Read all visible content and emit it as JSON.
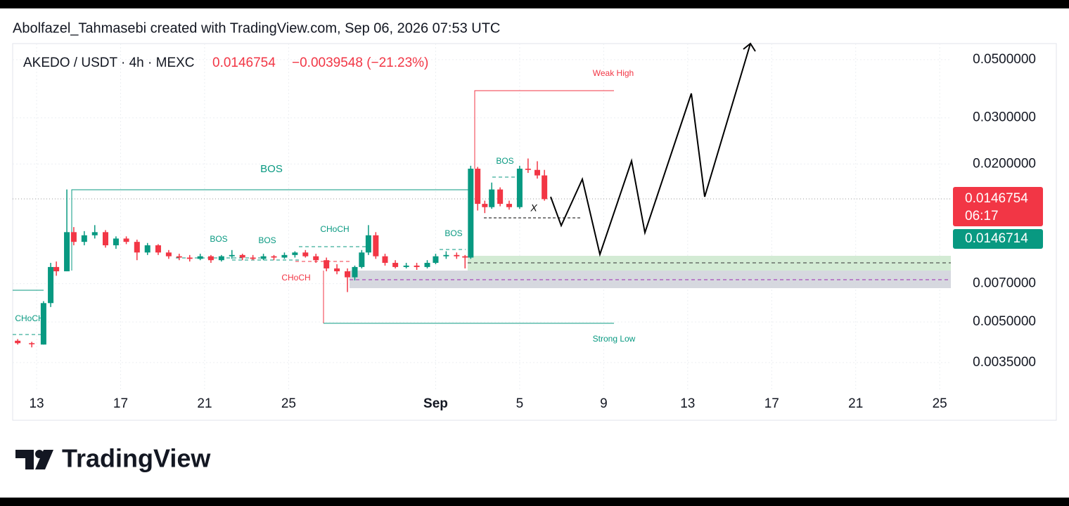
{
  "header": {
    "credit": "Abolfazel_Tahmasebi created with TradingView.com, Sep 06, 2026 07:53 UTC"
  },
  "footer": {
    "logo": "TradingView"
  },
  "chart_data": {
    "type": "candlestick",
    "title": "AKEDO / USDT · 4h · MEXC",
    "last_price": "0.0146754",
    "change": "−0.0039548 (−21.23%)",
    "price_box": "0.0146754",
    "countdown": "06:17",
    "second_box": "0.0146714",
    "annotations": [
      "BOS",
      "Weak High",
      "Strong Low",
      "CHoCH",
      "BOS",
      "BOS",
      "CHoCH",
      "CHoCH",
      "BOS",
      "BOS",
      "X"
    ],
    "log_scale": true,
    "grid": true,
    "up_color": "#089981",
    "down_color": "#f23645",
    "xlim": [
      11.86,
      56.53
    ],
    "xticks": [
      13,
      17,
      21,
      25,
      {
        "value": 32,
        "label": "Sep"
      },
      {
        "value": 36,
        "label": "5"
      },
      {
        "value": 40,
        "label": "9"
      },
      {
        "value": 44,
        "label": "13"
      },
      {
        "value": 48,
        "label": "17"
      },
      {
        "value": 52,
        "label": "21"
      },
      {
        "value": 56,
        "label": "25"
      }
    ],
    "ylim": [
      0.00275,
      0.0576
    ],
    "yticks": [
      {
        "value": 0.05,
        "label": "0.0500000"
      },
      {
        "value": 0.03,
        "label": "0.0300000"
      },
      {
        "value": 0.02,
        "label": "0.0200000"
      },
      {
        "value": 0.007,
        "label": "0.0070000"
      },
      {
        "value": 0.005,
        "label": "0.0050000"
      },
      {
        "value": 0.0035,
        "label": "0.0035000"
      }
    ],
    "x": [
      12.1,
      12.77,
      13.33,
      13.67,
      13.94,
      14.44,
      14.77,
      15.27,
      15.77,
      16.28,
      16.78,
      17.27,
      17.78,
      18.28,
      18.79,
      19.29,
      19.79,
      20.29,
      20.79,
      21.3,
      21.8,
      22.3,
      22.8,
      23.3,
      23.8,
      24.3,
      24.8,
      25.3,
      25.8,
      26.3,
      26.8,
      27.3,
      27.8,
      28.15,
      28.48,
      28.8,
      29.15,
      29.59,
      30.08,
      30.6,
      31.1,
      31.6,
      32.0,
      32.5,
      33.0,
      33.4,
      33.67,
      34.0,
      34.34,
      34.67,
      35.07,
      35.5,
      36.0,
      36.4,
      36.84,
      37.18
    ],
    "open": [
      0.00424,
      0.00415,
      0.0041,
      0.0059,
      0.0081,
      0.0078,
      0.011,
      0.0101,
      0.0107,
      0.011,
      0.0098,
      0.0104,
      0.0101,
      0.0092,
      0.0098,
      0.0092,
      0.0089,
      0.0088,
      0.0087,
      0.0089,
      0.0086,
      0.0089,
      0.009,
      0.0088,
      0.0087,
      0.0089,
      0.0088,
      0.009,
      0.0092,
      0.0089,
      0.0086,
      0.008,
      0.0078,
      0.0074,
      0.0081,
      0.0092,
      0.0107,
      0.0089,
      0.0084,
      0.0081,
      0.0082,
      0.0081,
      0.0084,
      0.0089,
      0.009,
      0.0089,
      0.0088,
      0.0192,
      0.0141,
      0.0137,
      0.016,
      0.0141,
      0.0137,
      0.0192,
      0.019,
      0.0181
    ],
    "high": [
      0.0043,
      0.0042,
      0.006,
      0.0084,
      0.0085,
      0.016,
      0.0115,
      0.0111,
      0.0117,
      0.0112,
      0.0106,
      0.0106,
      0.0103,
      0.01,
      0.0099,
      0.0094,
      0.0091,
      0.009,
      0.0091,
      0.009,
      0.009,
      0.0094,
      0.0091,
      0.009,
      0.0091,
      0.009,
      0.0092,
      0.0093,
      0.0094,
      0.0091,
      0.0088,
      0.0083,
      0.008,
      0.0082,
      0.0094,
      0.0117,
      0.011,
      0.0091,
      0.0086,
      0.0084,
      0.0084,
      0.0086,
      0.0091,
      0.0093,
      0.0092,
      0.009,
      0.0197,
      0.0195,
      0.0145,
      0.017,
      0.0163,
      0.0145,
      0.0197,
      0.021,
      0.0205,
      0.019
    ],
    "low": [
      0.0041,
      0.004,
      0.0041,
      0.0057,
      0.0075,
      0.0078,
      0.0098,
      0.0098,
      0.0104,
      0.0096,
      0.0095,
      0.0099,
      0.0086,
      0.009,
      0.009,
      0.0087,
      0.0086,
      0.0085,
      0.0086,
      0.0084,
      0.0085,
      0.0087,
      0.0086,
      0.0086,
      0.0086,
      0.0086,
      0.0087,
      0.0088,
      0.0088,
      0.0084,
      0.0078,
      0.0076,
      0.0065,
      0.0072,
      0.008,
      0.009,
      0.0087,
      0.0082,
      0.008,
      0.008,
      0.0079,
      0.008,
      0.0083,
      0.0087,
      0.0087,
      0.008,
      0.0087,
      0.0133,
      0.013,
      0.0135,
      0.0138,
      0.0134,
      0.0135,
      0.0185,
      0.0176,
      0.0145
    ],
    "close": [
      0.00415,
      0.00411,
      0.0059,
      0.0081,
      0.0078,
      0.011,
      0.0101,
      0.0107,
      0.011,
      0.0098,
      0.0104,
      0.0101,
      0.0092,
      0.0098,
      0.0092,
      0.0089,
      0.0088,
      0.0087,
      0.0089,
      0.0086,
      0.0089,
      0.009,
      0.0088,
      0.0087,
      0.0089,
      0.0088,
      0.009,
      0.0092,
      0.0089,
      0.0086,
      0.008,
      0.0078,
      0.0074,
      0.0081,
      0.0092,
      0.0107,
      0.0089,
      0.0084,
      0.0081,
      0.0082,
      0.0081,
      0.0084,
      0.0089,
      0.009,
      0.0089,
      0.0088,
      0.0192,
      0.0141,
      0.0137,
      0.016,
      0.0141,
      0.0137,
      0.0192,
      0.019,
      0.0181,
      0.0147
    ]
  }
}
